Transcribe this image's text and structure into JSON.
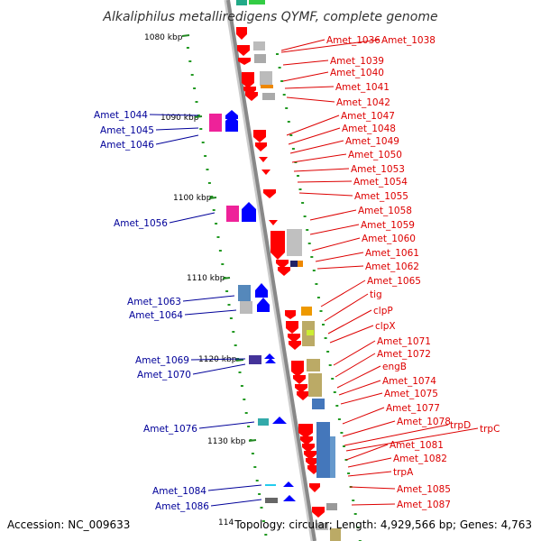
{
  "title": "Alkaliphilus metalliredigens QYMF, complete genome",
  "footer": {
    "accession": "Accession: NC_009633",
    "topology": "Topology: circular; Length: 4,929,566 bp; Genes: 4,763"
  },
  "colors": {
    "backbone": "#888888",
    "ticks": "#229922",
    "forward_label": "#000099",
    "reverse_label": "#dd0000",
    "forward_gene": "#0000ff",
    "reverse_gene": "#ff0000"
  },
  "scale_labels": [
    {
      "text": "1080 kbp"
    },
    {
      "text": "1090 kbp"
    },
    {
      "text": "1100 kbp"
    },
    {
      "text": "1110 kbp"
    },
    {
      "text": "1120 kbp"
    },
    {
      "text": "1130 kbp"
    },
    {
      "text": "114"
    }
  ],
  "reverse_genes": [
    "Amet_1036",
    "Amet_1038",
    "Amet_1039",
    "Amet_1040",
    "Amet_1041",
    "Amet_1042",
    "Amet_1047",
    "Amet_1048",
    "Amet_1049",
    "Amet_1050",
    "Amet_1053",
    "Amet_1054",
    "Amet_1055",
    "Amet_1058",
    "Amet_1059",
    "Amet_1060",
    "Amet_1061",
    "Amet_1062",
    "Amet_1065",
    "tig",
    "clpP",
    "clpX",
    "Amet_1071",
    "Amet_1072",
    "engB",
    "Amet_1074",
    "Amet_1075",
    "Amet_1077",
    "Amet_1078",
    "trpD",
    "trpC",
    "Amet_1081",
    "Amet_1082",
    "trpA",
    "Amet_1085",
    "Amet_1087"
  ],
  "forward_genes": [
    "Amet_1044",
    "Amet_1045",
    "Amet_1046",
    "Amet_1056",
    "Amet_1063",
    "Amet_1064",
    "Amet_1069",
    "Amet_1070",
    "Amet_1076",
    "Amet_1084",
    "Amet_1086"
  ]
}
